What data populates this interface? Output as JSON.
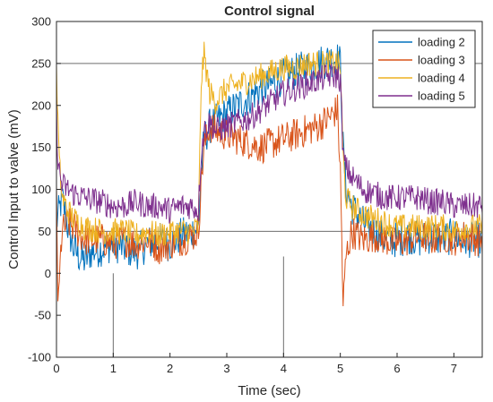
{
  "chart_data": {
    "type": "line",
    "title": "Control signal",
    "xlabel": "Time (sec)",
    "ylabel": "Control Input to valve (mV)",
    "xlim": [
      0,
      7.5
    ],
    "ylim": [
      -100,
      300
    ],
    "x_ticks": [
      "0",
      "1",
      "2",
      "3",
      "4",
      "5",
      "6",
      "7"
    ],
    "y_ticks": [
      "-100",
      "-50",
      "0",
      "50",
      "100",
      "150",
      "200",
      "250",
      "300"
    ],
    "legend_position": "top-right",
    "grid": false,
    "reference_lines": {
      "horizontal": [
        50,
        250
      ],
      "vertical": [
        {
          "x": 1,
          "y_range": [
            -100,
            0
          ]
        },
        {
          "x": 4,
          "y_range": [
            -100,
            20
          ]
        }
      ]
    },
    "reference_line_color": "#6e6e6e",
    "series": [
      {
        "name": "loading 2",
        "color": "#0072BD",
        "x": [
          0,
          0.05,
          0.1,
          0.2,
          0.3,
          0.4,
          0.5,
          0.6,
          0.8,
          1.0,
          1.2,
          1.4,
          1.6,
          1.8,
          2.0,
          2.2,
          2.4,
          2.5,
          2.55,
          2.6,
          2.7,
          2.8,
          3.0,
          3.2,
          3.4,
          3.6,
          3.8,
          4.0,
          4.2,
          4.4,
          4.6,
          4.8,
          4.95,
          5.0,
          5.05,
          5.1,
          5.2,
          5.4,
          5.6,
          5.8,
          6.0,
          6.2,
          6.4,
          6.6,
          6.8,
          7.0,
          7.2,
          7.4,
          7.5
        ],
        "y": [
          60,
          75,
          90,
          55,
          30,
          20,
          15,
          25,
          30,
          35,
          30,
          25,
          35,
          40,
          35,
          45,
          50,
          55,
          120,
          160,
          175,
          180,
          190,
          200,
          210,
          220,
          225,
          235,
          240,
          245,
          250,
          255,
          255,
          250,
          150,
          100,
          80,
          60,
          50,
          40,
          40,
          45,
          40,
          45,
          40,
          45,
          40,
          40,
          40
        ]
      },
      {
        "name": "loading 3",
        "color": "#D95319",
        "x": [
          0,
          0.03,
          0.07,
          0.1,
          0.2,
          0.3,
          0.5,
          0.8,
          1.0,
          1.2,
          1.4,
          1.6,
          1.8,
          2.0,
          2.2,
          2.4,
          2.5,
          2.55,
          2.6,
          2.7,
          2.8,
          3.0,
          3.2,
          3.4,
          3.6,
          3.8,
          4.0,
          4.2,
          4.4,
          4.6,
          4.8,
          4.95,
          5.0,
          5.05,
          5.1,
          5.2,
          5.4,
          5.6,
          5.8,
          6.0,
          6.2,
          6.4,
          6.6,
          6.8,
          7.0,
          7.2,
          7.4,
          7.5
        ],
        "y": [
          100,
          -50,
          20,
          50,
          60,
          55,
          40,
          40,
          35,
          40,
          35,
          40,
          30,
          35,
          40,
          45,
          50,
          110,
          150,
          175,
          170,
          165,
          160,
          155,
          150,
          155,
          160,
          165,
          170,
          175,
          185,
          195,
          120,
          -40,
          20,
          50,
          40,
          45,
          40,
          35,
          40,
          45,
          40,
          45,
          40,
          45,
          40,
          40
        ]
      },
      {
        "name": "loading 4",
        "color": "#EDB120",
        "x": [
          0,
          0.05,
          0.1,
          0.2,
          0.3,
          0.5,
          0.8,
          1.0,
          1.2,
          1.4,
          1.6,
          1.8,
          2.0,
          2.2,
          2.4,
          2.5,
          2.55,
          2.6,
          2.7,
          2.8,
          3.0,
          3.2,
          3.4,
          3.6,
          3.8,
          4.0,
          4.2,
          4.4,
          4.6,
          4.8,
          4.95,
          5.0,
          5.05,
          5.1,
          5.2,
          5.4,
          5.6,
          5.8,
          6.0,
          6.2,
          6.4,
          6.6,
          6.8,
          7.0,
          7.2,
          7.4,
          7.5
        ],
        "y": [
          235,
          130,
          90,
          75,
          65,
          55,
          50,
          50,
          50,
          45,
          50,
          45,
          50,
          50,
          50,
          55,
          230,
          260,
          215,
          205,
          220,
          225,
          230,
          235,
          240,
          245,
          245,
          250,
          250,
          250,
          250,
          245,
          140,
          90,
          80,
          70,
          65,
          60,
          55,
          55,
          55,
          55,
          55,
          50,
          55,
          55,
          55
        ]
      },
      {
        "name": "loading 5",
        "color": "#7E2F8E",
        "x": [
          0,
          0.02,
          0.05,
          0.1,
          0.2,
          0.3,
          0.5,
          0.8,
          1.0,
          1.2,
          1.4,
          1.6,
          1.8,
          2.0,
          2.2,
          2.4,
          2.5,
          2.55,
          2.6,
          2.7,
          2.8,
          3.0,
          3.2,
          3.4,
          3.6,
          3.8,
          4.0,
          4.2,
          4.4,
          4.6,
          4.8,
          4.95,
          5.0,
          5.05,
          5.1,
          5.2,
          5.4,
          5.6,
          5.8,
          6.0,
          6.2,
          6.4,
          6.6,
          6.8,
          7.0,
          7.2,
          7.4,
          7.5
        ],
        "y": [
          200,
          140,
          120,
          105,
          100,
          95,
          90,
          85,
          80,
          80,
          85,
          80,
          80,
          75,
          80,
          80,
          75,
          145,
          170,
          180,
          170,
          175,
          180,
          185,
          195,
          205,
          215,
          220,
          225,
          230,
          235,
          235,
          230,
          140,
          125,
          115,
          100,
          95,
          90,
          90,
          90,
          90,
          85,
          85,
          80,
          80,
          80,
          80
        ]
      }
    ]
  }
}
